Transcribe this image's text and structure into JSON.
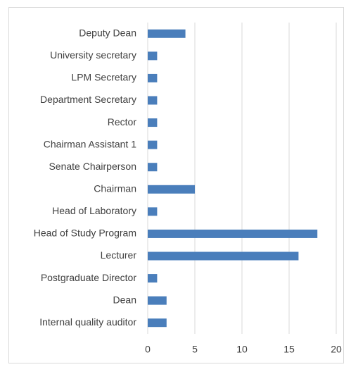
{
  "chart_data": {
    "type": "bar",
    "orientation": "horizontal",
    "categories": [
      "Deputy Dean",
      "University secretary",
      "LPM Secretary",
      "Department Secretary",
      "Rector",
      "Chairman Assistant 1",
      "Senate Chairperson",
      "Chairman",
      "Head of Laboratory",
      "Head of Study Program",
      "Lecturer",
      "Postgraduate Director",
      "Dean",
      "Internal quality auditor"
    ],
    "values": [
      4,
      1,
      1,
      1,
      1,
      1,
      1,
      5,
      1,
      18,
      16,
      1,
      2,
      2
    ],
    "color": "#4a7ebb",
    "xlim": [
      0,
      20
    ],
    "xticks": [
      0,
      5,
      10,
      15,
      20
    ],
    "grid": true
  }
}
